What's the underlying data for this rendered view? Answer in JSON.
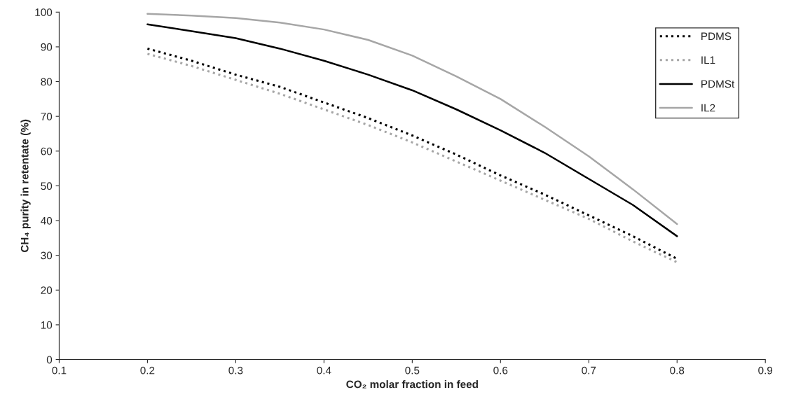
{
  "chart_data": {
    "type": "line",
    "xlabel": "CO₂ molar fraction in feed",
    "ylabel": "CH₄ purity in retentate (%)",
    "x": [
      0.2,
      0.25,
      0.3,
      0.35,
      0.4,
      0.45,
      0.5,
      0.55,
      0.6,
      0.65,
      0.7,
      0.75,
      0.8
    ],
    "series": [
      {
        "name": "PDMS",
        "color": "#000000",
        "line_style": "dotted",
        "values": [
          89.5,
          86,
          82,
          78.5,
          74,
          69.5,
          64.5,
          59,
          53,
          47.5,
          41.5,
          35.5,
          29
        ]
      },
      {
        "name": "IL1",
        "color": "#a6a6a6",
        "line_style": "dotted",
        "values": [
          88,
          84.5,
          80.5,
          76.5,
          72,
          67.5,
          62.5,
          57,
          51.5,
          46,
          40.5,
          34,
          28
        ]
      },
      {
        "name": "PDMSt",
        "color": "#000000",
        "line_style": "solid",
        "values": [
          96.5,
          94.5,
          92.5,
          89.5,
          86,
          82,
          77.5,
          72,
          66,
          59.5,
          52,
          44.5,
          35.5
        ]
      },
      {
        "name": "IL2",
        "color": "#a6a6a6",
        "line_style": "solid",
        "values": [
          99.5,
          99,
          98.3,
          97,
          95,
          92,
          87.5,
          81.5,
          75,
          67,
          58.5,
          49,
          39
        ]
      }
    ],
    "xlim": [
      0.1,
      0.9
    ],
    "xticks": [
      0.1,
      0.2,
      0.3,
      0.4,
      0.5,
      0.6,
      0.7,
      0.8,
      0.9
    ],
    "ylim": [
      0,
      100
    ],
    "yticks": [
      0,
      10,
      20,
      30,
      40,
      50,
      60,
      70,
      80,
      90,
      100
    ],
    "grid": false,
    "legend": "top right",
    "marker": "none"
  }
}
